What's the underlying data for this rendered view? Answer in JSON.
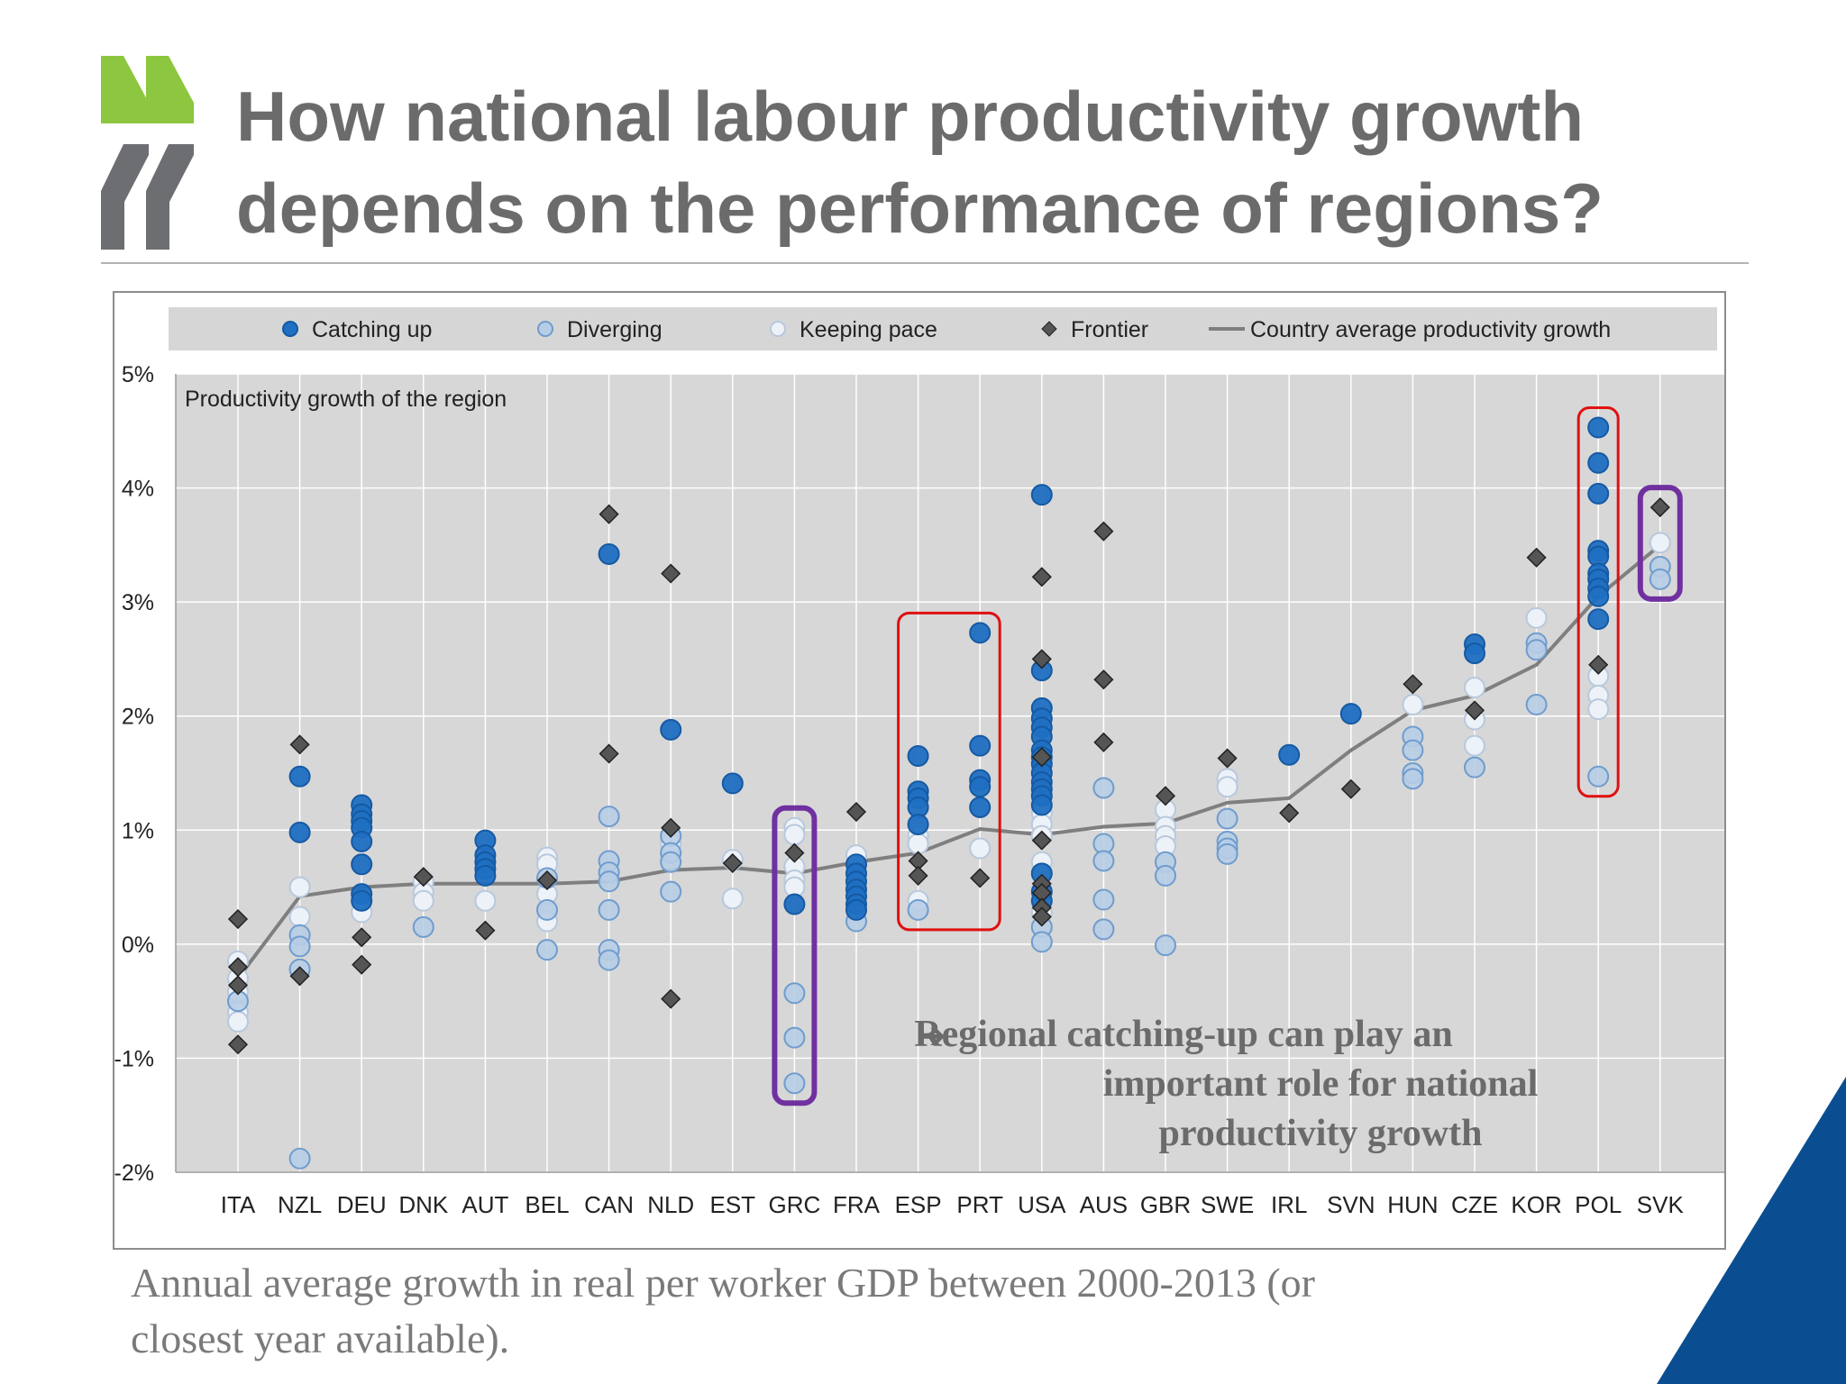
{
  "title_lines": [
    "How national labour productivity growth",
    "depends on the performance of regions?"
  ],
  "caption_lines": [
    "Annual average growth in real per worker GDP between 2000-2013 (or",
    "closest year available)."
  ],
  "colors": {
    "title": "#6b6b6b",
    "logo_green": "#8dc63f",
    "logo_grey": "#6d6e71",
    "plot_bg": "#d7d7d7",
    "catching_up": "#1f6fc2",
    "diverging": "#b7cde6",
    "keeping_pace": "#edf2f8",
    "frontier": "#555555",
    "avg_line": "#7f7f7f",
    "highlight_red": "#e01010",
    "highlight_purple": "#7030a0",
    "corner_blue": "#0a4e91",
    "annotation": "#6b6b6b"
  },
  "chart_data": {
    "type": "scatter",
    "ylabel": "Productivity  growth of the region",
    "ylim": [
      -2,
      5
    ],
    "yticks": [
      -2,
      -1,
      0,
      1,
      2,
      3,
      4,
      5
    ],
    "ytick_labels": [
      "-2%",
      "-1%",
      "0%",
      "1%",
      "2%",
      "3%",
      "4%",
      "5%"
    ],
    "legend": {
      "position": "top",
      "entries": [
        {
          "key": "catching",
          "label": "Catching up"
        },
        {
          "key": "diverging",
          "label": "Diverging"
        },
        {
          "key": "keeping",
          "label": "Keeping pace"
        },
        {
          "key": "frontier",
          "label": "Frontier"
        },
        {
          "key": "average",
          "label": "Country average productivity growth"
        }
      ]
    },
    "categories": [
      "ITA",
      "NZL",
      "DEU",
      "DNK",
      "AUT",
      "BEL",
      "CAN",
      "NLD",
      "EST",
      "GRC",
      "FRA",
      "ESP",
      "PRT",
      "USA",
      "AUS",
      "GBR",
      "SWE",
      "IRL",
      "SVN",
      "HUN",
      "CZE",
      "KOR",
      "POL",
      "SVK"
    ],
    "country_average": [
      -0.3,
      0.42,
      0.5,
      0.53,
      0.53,
      0.53,
      0.55,
      0.65,
      0.67,
      0.62,
      0.72,
      0.8,
      1.01,
      0.96,
      1.03,
      1.06,
      1.24,
      1.28,
      1.7,
      2.05,
      2.18,
      2.45,
      3.05,
      3.5
    ],
    "series": [
      {
        "name": "Catching up",
        "key": "catching",
        "points": [
          [
            "NZL",
            1.47
          ],
          [
            "NZL",
            0.98
          ],
          [
            "DEU",
            1.22
          ],
          [
            "DEU",
            1.14
          ],
          [
            "DEU",
            1.08
          ],
          [
            "DEU",
            1.02
          ],
          [
            "DEU",
            0.9
          ],
          [
            "DEU",
            0.7
          ],
          [
            "DEU",
            0.44
          ],
          [
            "DEU",
            0.38
          ],
          [
            "AUT",
            0.91
          ],
          [
            "AUT",
            0.78
          ],
          [
            "AUT",
            0.72
          ],
          [
            "AUT",
            0.66
          ],
          [
            "AUT",
            0.6
          ],
          [
            "CAN",
            3.42
          ],
          [
            "NLD",
            1.88
          ],
          [
            "EST",
            1.41
          ],
          [
            "GRC",
            0.35
          ],
          [
            "FRA",
            0.7
          ],
          [
            "FRA",
            0.62
          ],
          [
            "FRA",
            0.55
          ],
          [
            "FRA",
            0.48
          ],
          [
            "FRA",
            0.42
          ],
          [
            "FRA",
            0.35
          ],
          [
            "FRA",
            0.3
          ],
          [
            "ESP",
            1.65
          ],
          [
            "ESP",
            1.34
          ],
          [
            "ESP",
            1.28
          ],
          [
            "ESP",
            1.2
          ],
          [
            "ESP",
            1.05
          ],
          [
            "PRT",
            2.73
          ],
          [
            "PRT",
            1.74
          ],
          [
            "PRT",
            1.44
          ],
          [
            "PRT",
            1.38
          ],
          [
            "PRT",
            1.2
          ],
          [
            "USA",
            3.94
          ],
          [
            "USA",
            2.4
          ],
          [
            "USA",
            2.07
          ],
          [
            "USA",
            1.98
          ],
          [
            "USA",
            1.9
          ],
          [
            "USA",
            1.82
          ],
          [
            "USA",
            1.7
          ],
          [
            "USA",
            1.64
          ],
          [
            "USA",
            1.58
          ],
          [
            "USA",
            1.5
          ],
          [
            "USA",
            1.42
          ],
          [
            "USA",
            1.36
          ],
          [
            "USA",
            1.3
          ],
          [
            "USA",
            1.22
          ],
          [
            "USA",
            0.62
          ],
          [
            "USA",
            0.46
          ],
          [
            "USA",
            0.38
          ],
          [
            "SVN",
            2.02
          ],
          [
            "IRL",
            1.66
          ],
          [
            "CZE",
            2.63
          ],
          [
            "CZE",
            2.55
          ],
          [
            "POL",
            4.53
          ],
          [
            "POL",
            4.22
          ],
          [
            "POL",
            3.95
          ],
          [
            "POL",
            3.45
          ],
          [
            "POL",
            3.4
          ],
          [
            "POL",
            3.25
          ],
          [
            "POL",
            3.2
          ],
          [
            "POL",
            3.12
          ],
          [
            "POL",
            3.05
          ],
          [
            "POL",
            2.85
          ]
        ]
      },
      {
        "name": "Diverging",
        "key": "diverging",
        "points": [
          [
            "ITA",
            -0.5
          ],
          [
            "NZL",
            0.08
          ],
          [
            "NZL",
            -0.02
          ],
          [
            "NZL",
            -0.22
          ],
          [
            "NZL",
            -1.88
          ],
          [
            "DNK",
            0.15
          ],
          [
            "BEL",
            0.58
          ],
          [
            "BEL",
            0.3
          ],
          [
            "BEL",
            -0.05
          ],
          [
            "CAN",
            1.12
          ],
          [
            "CAN",
            0.73
          ],
          [
            "CAN",
            0.63
          ],
          [
            "CAN",
            0.55
          ],
          [
            "CAN",
            0.3
          ],
          [
            "CAN",
            -0.05
          ],
          [
            "CAN",
            -0.14
          ],
          [
            "NLD",
            0.95
          ],
          [
            "NLD",
            0.8
          ],
          [
            "NLD",
            0.72
          ],
          [
            "NLD",
            0.46
          ],
          [
            "GRC",
            -0.43
          ],
          [
            "GRC",
            -0.82
          ],
          [
            "GRC",
            -1.22
          ],
          [
            "FRA",
            0.2
          ],
          [
            "ESP",
            0.3
          ],
          [
            "USA",
            0.15
          ],
          [
            "USA",
            0.02
          ],
          [
            "AUS",
            1.37
          ],
          [
            "AUS",
            0.88
          ],
          [
            "AUS",
            0.73
          ],
          [
            "AUS",
            0.39
          ],
          [
            "AUS",
            0.13
          ],
          [
            "GBR",
            0.72
          ],
          [
            "GBR",
            0.6
          ],
          [
            "GBR",
            -0.01
          ],
          [
            "SWE",
            1.1
          ],
          [
            "SWE",
            0.9
          ],
          [
            "SWE",
            0.84
          ],
          [
            "SWE",
            0.79
          ],
          [
            "HUN",
            1.82
          ],
          [
            "HUN",
            1.7
          ],
          [
            "HUN",
            1.5
          ],
          [
            "HUN",
            1.45
          ],
          [
            "CZE",
            1.55
          ],
          [
            "KOR",
            2.64
          ],
          [
            "KOR",
            2.58
          ],
          [
            "KOR",
            2.1
          ],
          [
            "POL",
            1.47
          ],
          [
            "SVK",
            3.31
          ],
          [
            "SVK",
            3.2
          ]
        ]
      },
      {
        "name": "Keeping pace",
        "key": "keeping",
        "points": [
          [
            "ITA",
            -0.15
          ],
          [
            "ITA",
            -0.3
          ],
          [
            "ITA",
            -0.42
          ],
          [
            "ITA",
            -0.6
          ],
          [
            "ITA",
            -0.68
          ],
          [
            "NZL",
            0.5
          ],
          [
            "NZL",
            0.24
          ],
          [
            "DEU",
            0.28
          ],
          [
            "DNK",
            0.55
          ],
          [
            "DNK",
            0.45
          ],
          [
            "DNK",
            0.38
          ],
          [
            "AUT",
            0.38
          ],
          [
            "BEL",
            0.76
          ],
          [
            "BEL",
            0.7
          ],
          [
            "BEL",
            0.44
          ],
          [
            "BEL",
            0.2
          ],
          [
            "NLD",
            0.88
          ],
          [
            "EST",
            0.74
          ],
          [
            "EST",
            0.4
          ],
          [
            "GRC",
            1.02
          ],
          [
            "GRC",
            0.96
          ],
          [
            "GRC",
            0.68
          ],
          [
            "GRC",
            0.56
          ],
          [
            "GRC",
            0.5
          ],
          [
            "FRA",
            0.78
          ],
          [
            "ESP",
            0.95
          ],
          [
            "ESP",
            0.88
          ],
          [
            "ESP",
            0.38
          ],
          [
            "PRT",
            0.84
          ],
          [
            "USA",
            1.15
          ],
          [
            "USA",
            1.05
          ],
          [
            "USA",
            0.95
          ],
          [
            "USA",
            0.72
          ],
          [
            "USA",
            0.28
          ],
          [
            "GBR",
            1.18
          ],
          [
            "GBR",
            1.03
          ],
          [
            "GBR",
            0.95
          ],
          [
            "GBR",
            0.86
          ],
          [
            "SWE",
            1.45
          ],
          [
            "SWE",
            1.38
          ],
          [
            "HUN",
            2.1
          ],
          [
            "CZE",
            2.25
          ],
          [
            "CZE",
            1.97
          ],
          [
            "CZE",
            1.74
          ],
          [
            "KOR",
            2.86
          ],
          [
            "POL",
            2.35
          ],
          [
            "POL",
            2.18
          ],
          [
            "POL",
            2.06
          ],
          [
            "SVK",
            3.52
          ]
        ]
      },
      {
        "name": "Frontier",
        "key": "frontier",
        "points": [
          [
            "ITA",
            0.22
          ],
          [
            "ITA",
            -0.2
          ],
          [
            "ITA",
            -0.36
          ],
          [
            "ITA",
            -0.88
          ],
          [
            "NZL",
            1.75
          ],
          [
            "NZL",
            -0.28
          ],
          [
            "DEU",
            0.06
          ],
          [
            "DEU",
            -0.18
          ],
          [
            "DNK",
            0.59
          ],
          [
            "AUT",
            0.12
          ],
          [
            "BEL",
            0.56
          ],
          [
            "CAN",
            3.77
          ],
          [
            "CAN",
            1.67
          ],
          [
            "NLD",
            3.25
          ],
          [
            "NLD",
            1.02
          ],
          [
            "NLD",
            -0.48
          ],
          [
            "EST",
            0.71
          ],
          [
            "GRC",
            0.8
          ],
          [
            "FRA",
            1.16
          ],
          [
            "ESP",
            0.73
          ],
          [
            "ESP",
            0.6
          ],
          [
            "PRT",
            0.58
          ],
          [
            "USA",
            3.22
          ],
          [
            "USA",
            2.5
          ],
          [
            "USA",
            1.64
          ],
          [
            "USA",
            0.91
          ],
          [
            "USA",
            0.53
          ],
          [
            "USA",
            0.45
          ],
          [
            "USA",
            0.32
          ],
          [
            "USA",
            0.24
          ],
          [
            "AUS",
            3.62
          ],
          [
            "AUS",
            2.32
          ],
          [
            "AUS",
            1.77
          ],
          [
            "GBR",
            1.3
          ],
          [
            "SWE",
            1.63
          ],
          [
            "IRL",
            1.15
          ],
          [
            "SVN",
            1.36
          ],
          [
            "HUN",
            2.28
          ],
          [
            "CZE",
            2.05
          ],
          [
            "KOR",
            3.39
          ],
          [
            "POL",
            2.45
          ],
          [
            "SVK",
            3.83
          ]
        ]
      }
    ],
    "highlights": [
      {
        "color": "red",
        "countries": [
          "ESP",
          "PRT"
        ]
      },
      {
        "color": "red",
        "countries": [
          "POL"
        ]
      },
      {
        "color": "purple",
        "countries": [
          "GRC"
        ]
      },
      {
        "color": "purple",
        "countries": [
          "SVK"
        ]
      }
    ],
    "annotation": {
      "arrow": "➔",
      "lines": [
        "Regional catching-up can play an",
        "important role for national",
        "productivity growth"
      ]
    }
  }
}
